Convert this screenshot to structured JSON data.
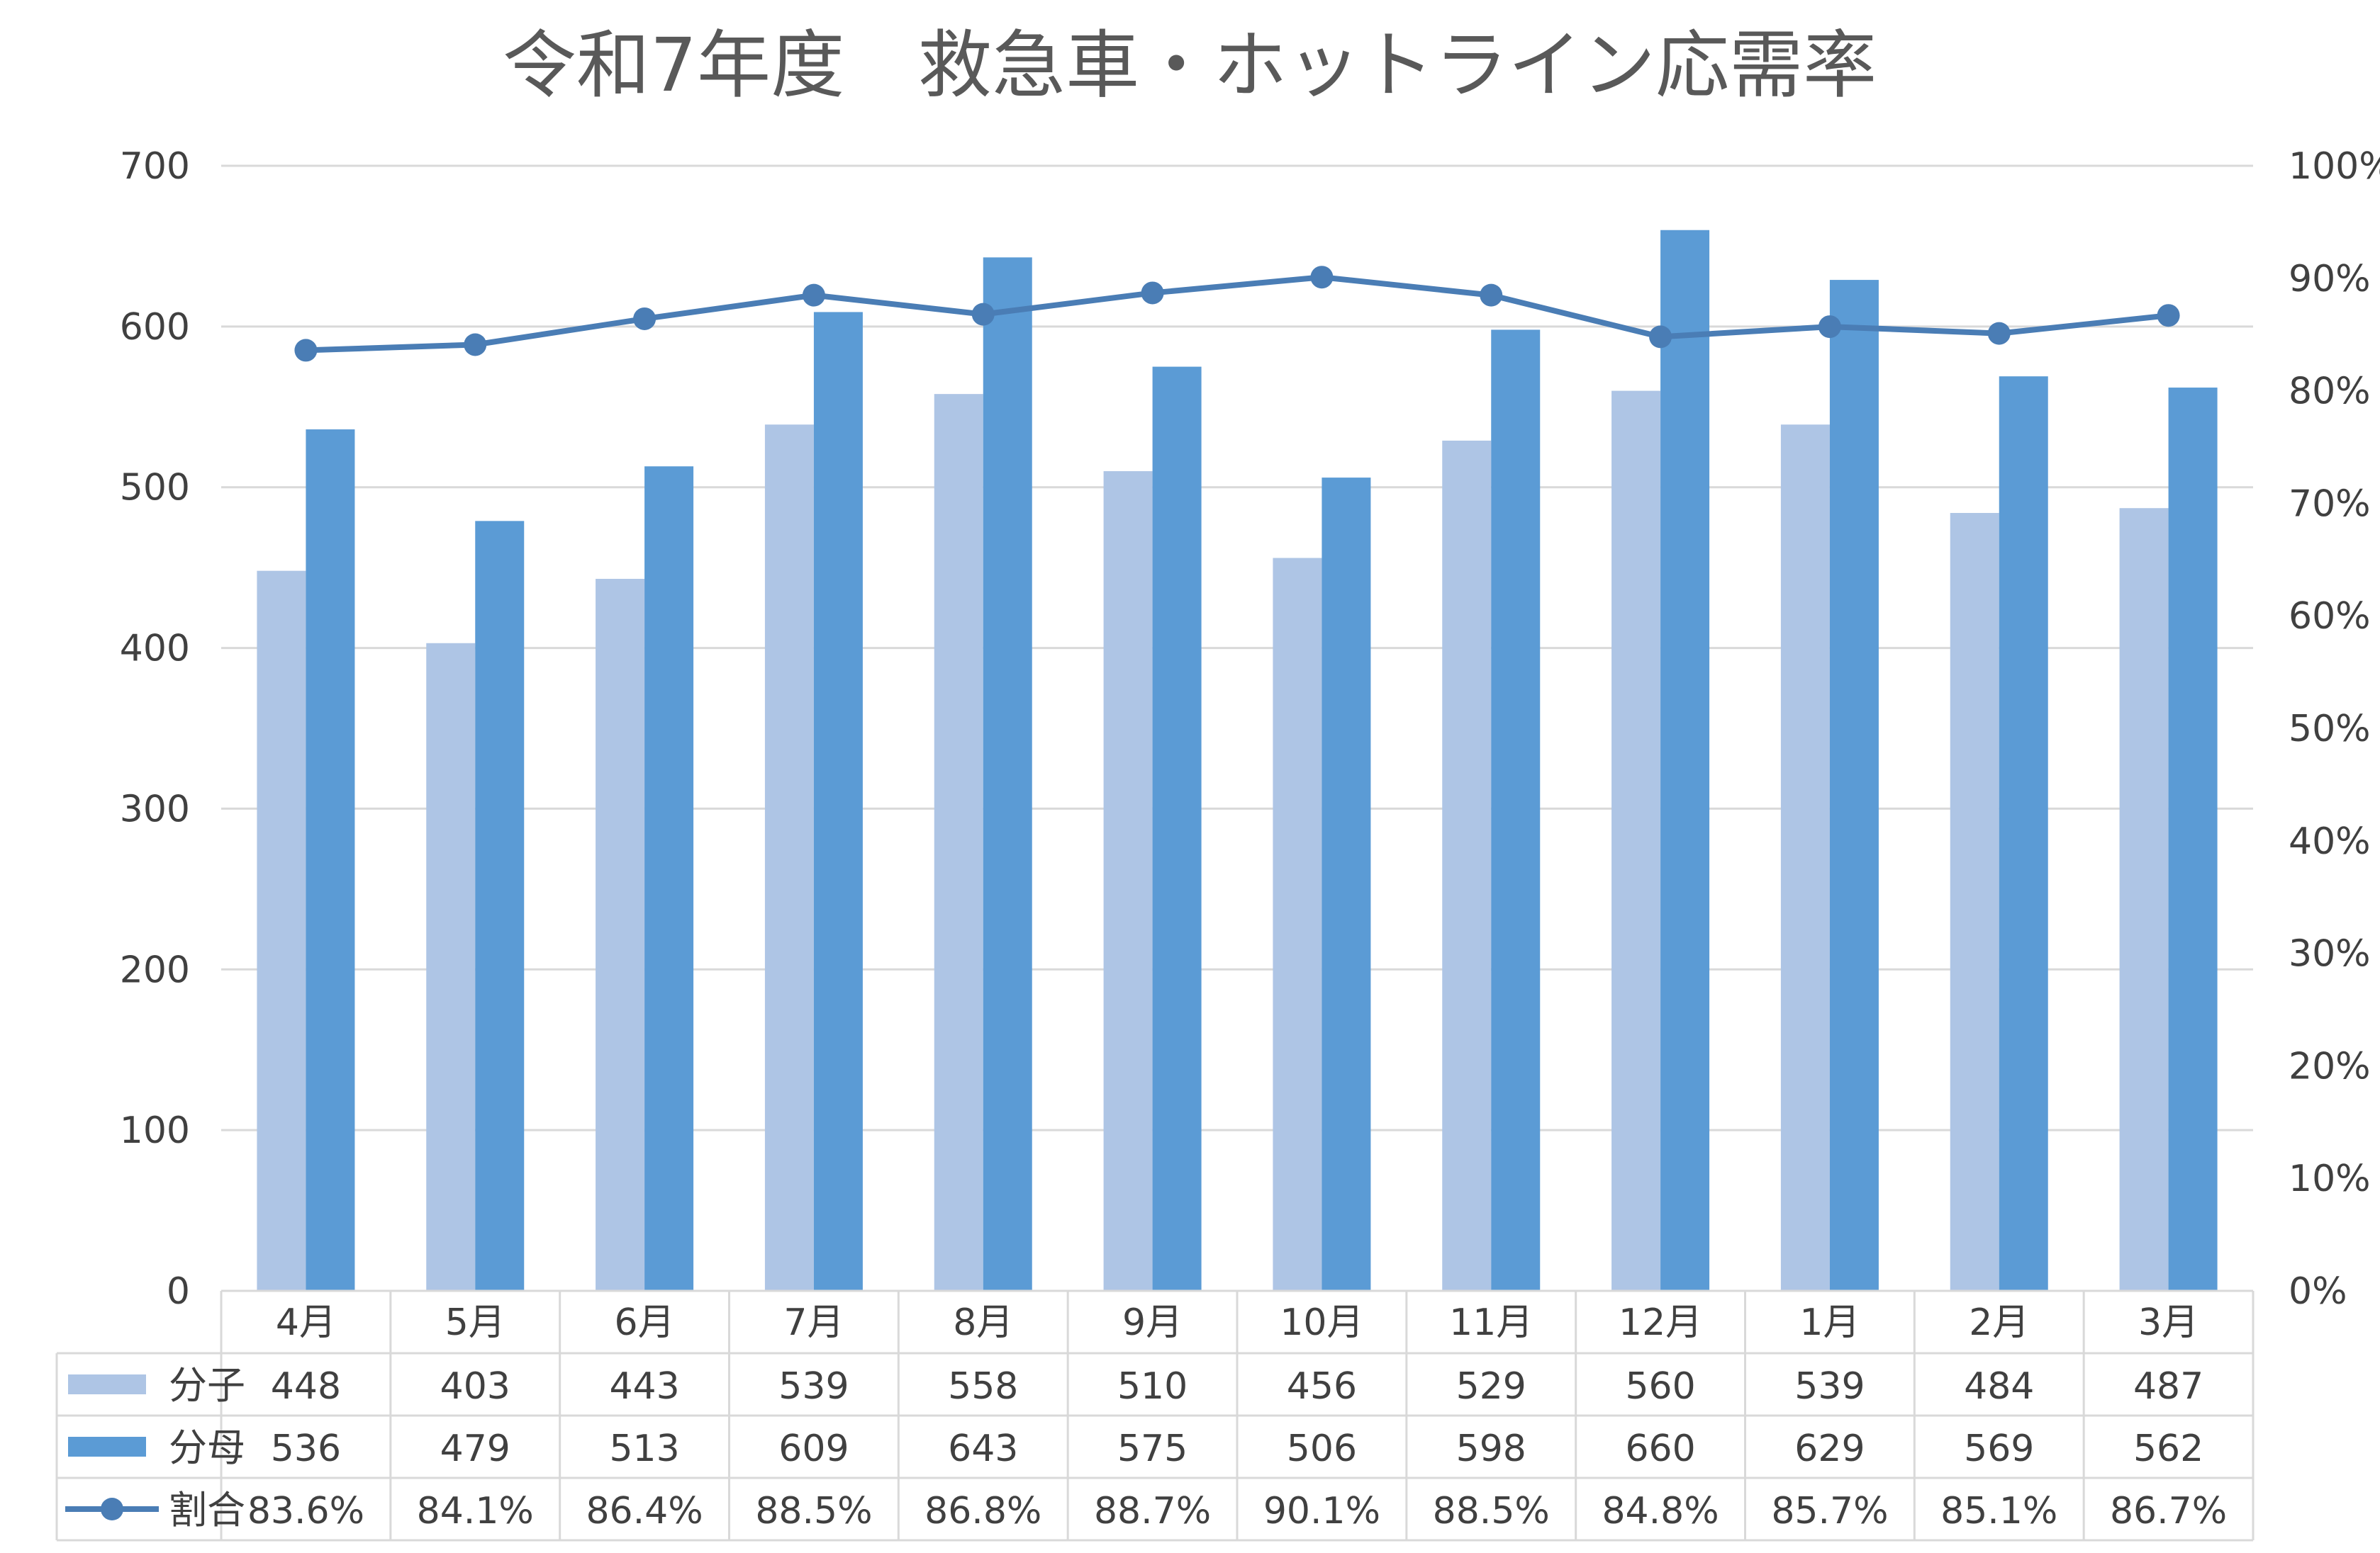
{
  "chart_data": {
    "type": "bar",
    "title": "令和7年度　救急車・ホットライン応需率",
    "categories": [
      "4月",
      "5月",
      "6月",
      "7月",
      "8月",
      "9月",
      "10月",
      "11月",
      "12月",
      "1月",
      "2月",
      "3月"
    ],
    "series": [
      {
        "name": "分子",
        "type": "bar",
        "axis": "left",
        "color": "#aec5e5",
        "values": [
          448,
          403,
          443,
          539,
          558,
          510,
          456,
          529,
          560,
          539,
          484,
          487
        ]
      },
      {
        "name": "分母",
        "type": "bar",
        "axis": "right-none",
        "color": "#5b9bd5",
        "values": [
          536,
          479,
          513,
          609,
          643,
          575,
          506,
          598,
          660,
          629,
          569,
          562
        ]
      },
      {
        "name": "割合",
        "type": "line",
        "axis": "right",
        "color": "#4a7db5",
        "values": [
          83.6,
          84.1,
          86.4,
          88.5,
          86.8,
          88.7,
          90.1,
          88.5,
          84.8,
          85.7,
          85.1,
          86.7
        ],
        "labels": [
          "83.6%",
          "84.1%",
          "86.4%",
          "88.5%",
          "86.8%",
          "88.7%",
          "90.1%",
          "88.5%",
          "84.8%",
          "85.7%",
          "85.1%",
          "86.7%"
        ]
      }
    ],
    "ylim": [
      0,
      700
    ],
    "y_ticks": [
      "0",
      "100",
      "200",
      "300",
      "400",
      "500",
      "600",
      "700"
    ],
    "y2lim": [
      0,
      100
    ],
    "y2_ticks": [
      "0%",
      "10%",
      "20%",
      "30%",
      "40%",
      "50%",
      "60%",
      "70%",
      "80%",
      "90%",
      "100%"
    ],
    "grid": true,
    "legend": "data-table"
  }
}
